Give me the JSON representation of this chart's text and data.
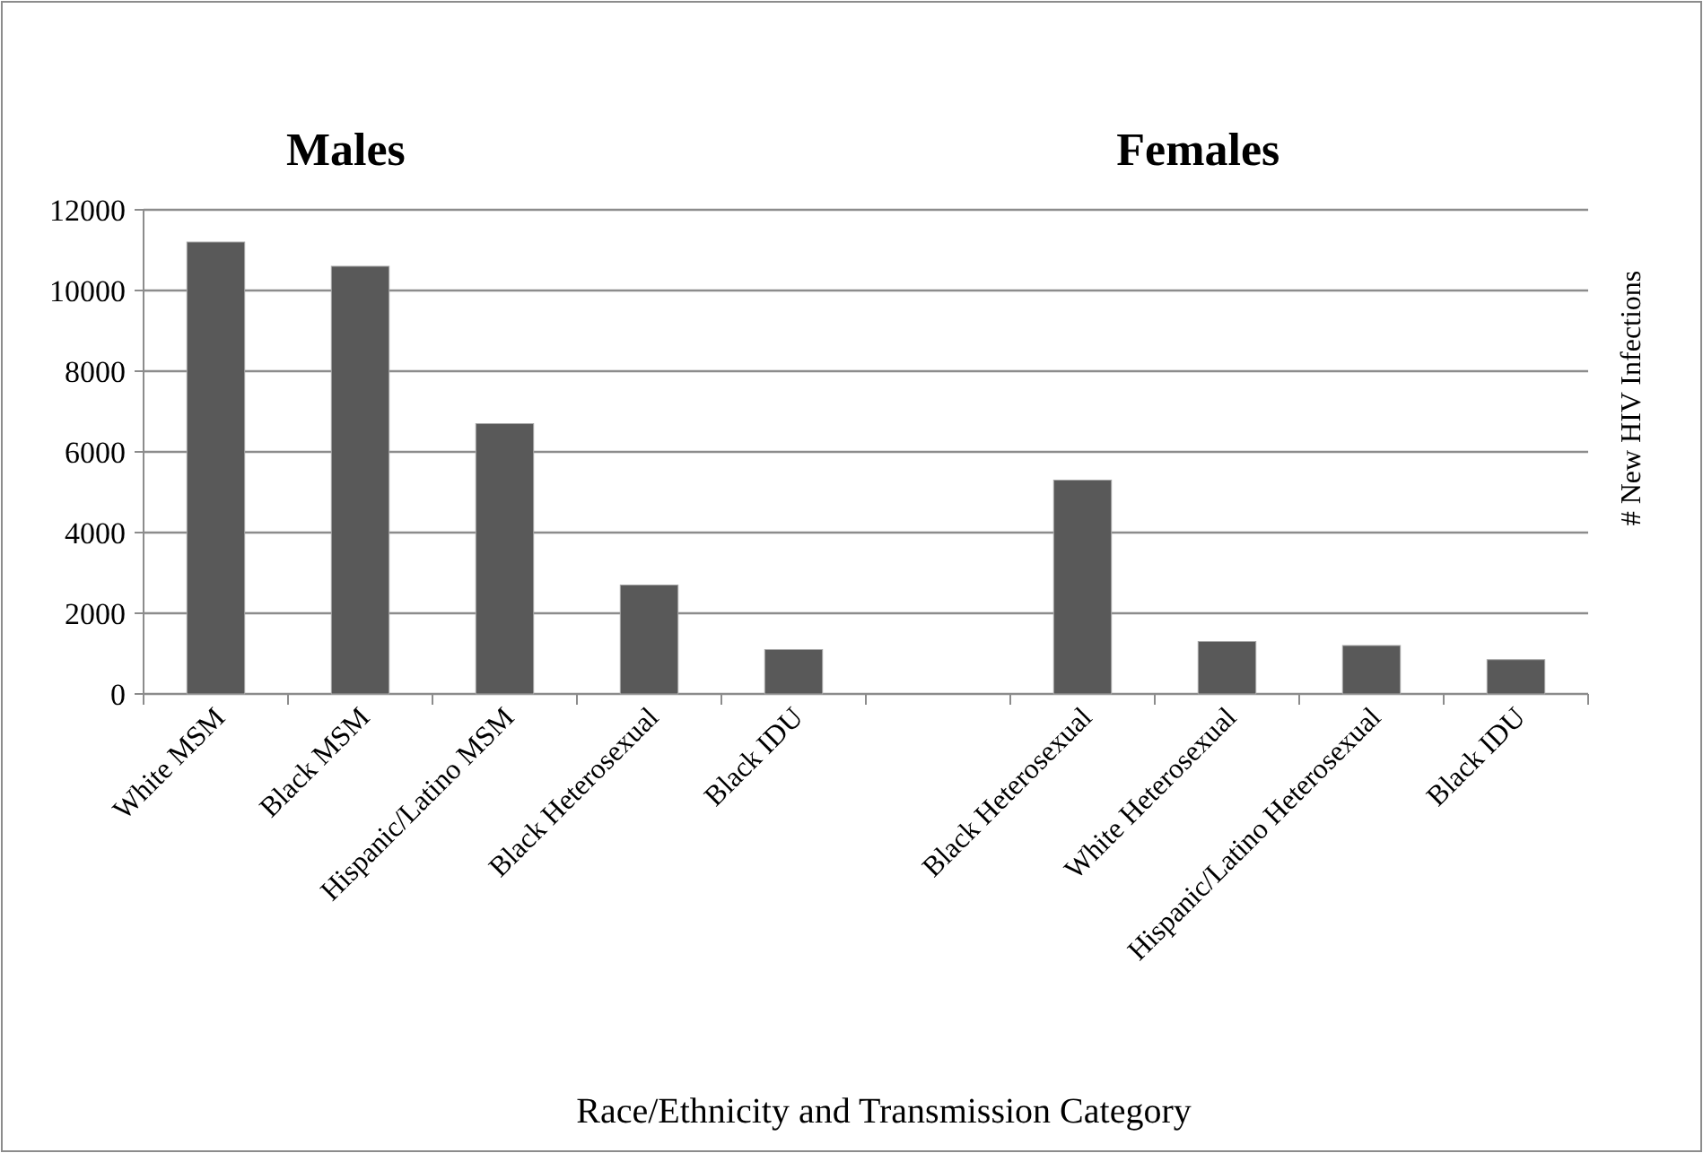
{
  "chart_data": {
    "type": "bar",
    "xlabel": "Race/Ethnicity and Transmission Category",
    "ylabel": "# New HIV Infections",
    "annotations": [
      "Males",
      "Females"
    ],
    "categories": [
      "White MSM",
      "Black MSM",
      "Hispanic/Latino MSM",
      "Black Heterosexual",
      "Black IDU",
      null,
      "Black Heterosexual",
      "White Heterosexual",
      "Hispanic/Latino Heterosexual",
      "Black IDU"
    ],
    "values": [
      11200,
      10600,
      6700,
      2700,
      1100,
      null,
      5300,
      1300,
      1200,
      850
    ],
    "color": "#595959",
    "ylim": [
      0,
      12000
    ],
    "yticks": [
      0,
      2000,
      4000,
      6000,
      8000,
      10000,
      12000
    ],
    "grid": "y"
  }
}
